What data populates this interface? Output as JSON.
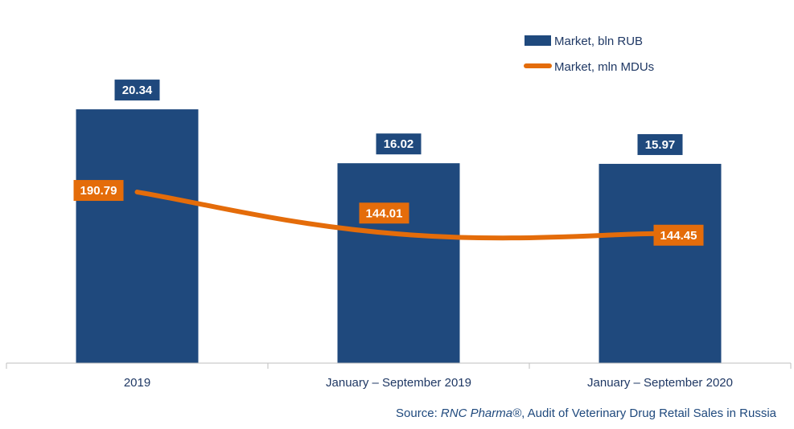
{
  "chart_data": {
    "type": "bar",
    "categories": [
      "2019",
      "January – September 2019",
      "January – September 2020"
    ],
    "series": [
      {
        "name": "Market, bln RUB",
        "kind": "bar",
        "axis": "left",
        "values": [
          20.34,
          16.02,
          15.97
        ],
        "labels": [
          "20.34",
          "16.02",
          "15.97"
        ],
        "color": "#1f497d"
      },
      {
        "name": "Market, mln MDUs",
        "kind": "line",
        "axis": "right",
        "values": [
          190.79,
          144.01,
          144.45
        ],
        "labels": [
          "190.79",
          "144.01",
          "144.45"
        ],
        "color": "#e46c0a"
      }
    ],
    "left_axis": {
      "ylim": [
        0,
        23.5
      ]
    },
    "right_axis": {
      "ylim": [
        0,
        327
      ]
    },
    "legend_position": "top-right",
    "grid": false
  },
  "source": {
    "prefix": "Source: ",
    "brand": "RNC Pharma®",
    "suffix": ", Audit of Veterinary Drug Retail Sales in Russia"
  }
}
